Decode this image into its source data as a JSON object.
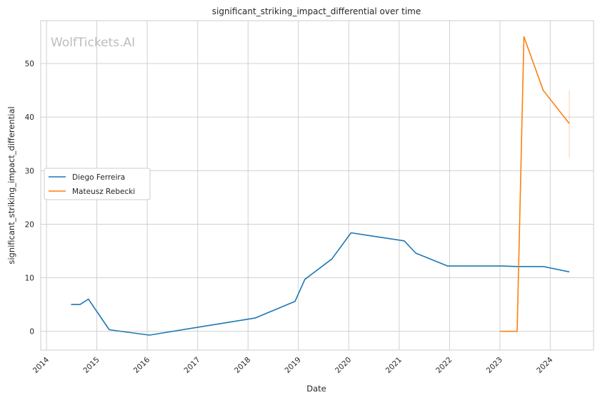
{
  "chart_data": {
    "type": "line",
    "title": "significant_striking_impact_differential over time",
    "xlabel": "Date",
    "ylabel": "significant_striking_impact_differential",
    "watermark": "WolfTickets.AI",
    "x_axis": {
      "type": "date",
      "range": [
        "2013-11-20",
        "2024-11-10"
      ],
      "ticks": [
        "2014",
        "2015",
        "2016",
        "2017",
        "2018",
        "2019",
        "2020",
        "2021",
        "2022",
        "2023",
        "2024"
      ]
    },
    "y_axis": {
      "range": [
        -3.5,
        58
      ],
      "ticks": [
        0,
        10,
        20,
        30,
        40,
        50
      ]
    },
    "grid": true,
    "legend": {
      "placement": "center-left"
    },
    "series": [
      {
        "name": "Diego Ferreira",
        "color": "#1f77b4",
        "points": [
          [
            "2014-06-28",
            5.0
          ],
          [
            "2014-09-01",
            5.0
          ],
          [
            "2014-11-01",
            6.0
          ],
          [
            "2015-04-01",
            0.3
          ],
          [
            "2016-01-17",
            -0.7
          ],
          [
            "2018-02-24",
            2.5
          ],
          [
            "2018-12-08",
            5.6
          ],
          [
            "2019-02-17",
            9.7
          ],
          [
            "2019-08-31",
            13.5
          ],
          [
            "2020-01-18",
            18.4
          ],
          [
            "2021-02-06",
            16.9
          ],
          [
            "2021-05-01",
            14.6
          ],
          [
            "2021-12-18",
            12.2
          ],
          [
            "2023-01-14",
            12.2
          ],
          [
            "2023-05-06",
            12.1
          ],
          [
            "2023-11-11",
            12.1
          ],
          [
            "2024-05-18",
            11.1
          ]
        ]
      },
      {
        "name": "Mateusz Rebecki",
        "color": "#ff7f0e",
        "points": [
          [
            "2023-01-01",
            0.0
          ],
          [
            "2023-05-06",
            0.0
          ],
          [
            "2023-06-24",
            55.0
          ],
          [
            "2023-11-11",
            45.0
          ],
          [
            "2024-05-18",
            38.8
          ]
        ],
        "error_band": {
          "x": "2024-05-18",
          "low": 32.5,
          "high": 45.0
        }
      }
    ]
  }
}
